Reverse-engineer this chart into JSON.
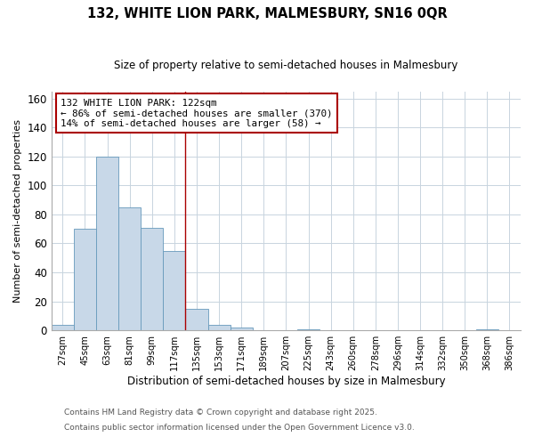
{
  "title": "132, WHITE LION PARK, MALMESBURY, SN16 0QR",
  "subtitle": "Size of property relative to semi-detached houses in Malmesbury",
  "xlabel": "Distribution of semi-detached houses by size in Malmesbury",
  "ylabel": "Number of semi-detached properties",
  "bar_color": "#c8d8e8",
  "bar_edge_color": "#6699bb",
  "categories": [
    "27sqm",
    "45sqm",
    "63sqm",
    "81sqm",
    "99sqm",
    "117sqm",
    "135sqm",
    "153sqm",
    "171sqm",
    "189sqm",
    "207sqm",
    "225sqm",
    "243sqm",
    "260sqm",
    "278sqm",
    "296sqm",
    "314sqm",
    "332sqm",
    "350sqm",
    "368sqm",
    "386sqm"
  ],
  "values": [
    4,
    70,
    120,
    85,
    71,
    55,
    15,
    4,
    2,
    0,
    0,
    1,
    0,
    0,
    0,
    0,
    0,
    0,
    0,
    1,
    0
  ],
  "ylim": [
    0,
    165
  ],
  "yticks": [
    0,
    20,
    40,
    60,
    80,
    100,
    120,
    140,
    160
  ],
  "property_line_x": 5.5,
  "annotation_title": "132 WHITE LION PARK: 122sqm",
  "annotation_line1": "← 86% of semi-detached houses are smaller (370)",
  "annotation_line2": "14% of semi-detached houses are larger (58) →",
  "vline_color": "#aa0000",
  "annotation_box_color": "#ffffff",
  "annotation_box_edge": "#aa0000",
  "footer1": "Contains HM Land Registry data © Crown copyright and database right 2025.",
  "footer2": "Contains public sector information licensed under the Open Government Licence v3.0.",
  "background_color": "#ffffff",
  "grid_color": "#c8d4de"
}
